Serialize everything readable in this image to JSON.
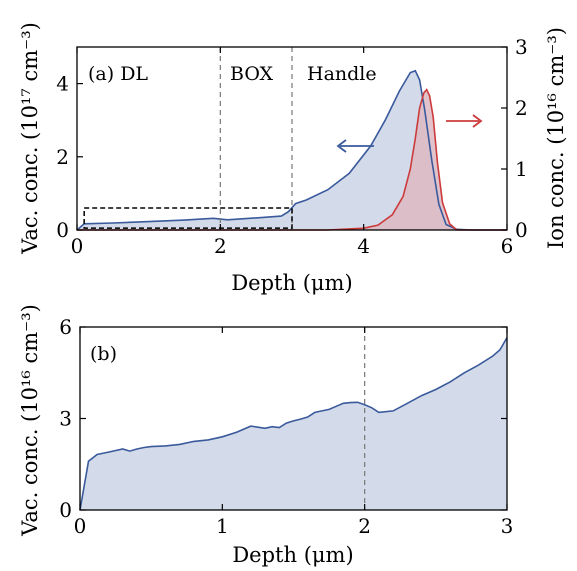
{
  "chart_data": [
    {
      "panel": "(a)",
      "type": "area",
      "xlabel": "Depth (μm)",
      "ylabel": "Vac. conc. (10¹⁷ cm⁻³)",
      "y2label": "Ion conc. (10¹⁶ cm⁻³)",
      "xlim": [
        0,
        6
      ],
      "ylim": [
        0,
        5
      ],
      "y2lim": [
        0,
        3
      ],
      "xticks": [
        "0",
        "2",
        "4",
        "6"
      ],
      "yticks": [
        "0",
        "2",
        "4"
      ],
      "y2ticks": [
        "0",
        "1",
        "2",
        "3"
      ],
      "region_labels": [
        "(a)  DL",
        "BOX",
        "Handle"
      ],
      "region_boundaries": [
        2,
        3
      ],
      "zoom_box": {
        "x": [
          0.1,
          3.0
        ],
        "y": [
          0.05,
          0.6
        ]
      },
      "grid": false,
      "series": [
        {
          "axis": "left",
          "color": "#3a5a9c",
          "fill": "#d3dae9",
          "arrow": "left",
          "x": [
            0,
            0.1,
            0.5,
            1.0,
            1.5,
            1.9,
            2.1,
            2.5,
            2.85,
            2.95,
            3.05,
            3.2,
            3.5,
            3.8,
            4.1,
            4.3,
            4.5,
            4.65,
            4.72,
            4.78,
            4.85,
            4.95,
            5.05,
            5.15,
            5.3,
            5.5,
            6.0
          ],
          "y": [
            0,
            0.17,
            0.19,
            0.23,
            0.27,
            0.32,
            0.28,
            0.33,
            0.38,
            0.5,
            0.72,
            0.82,
            1.1,
            1.55,
            2.3,
            3.0,
            3.8,
            4.3,
            4.35,
            4.1,
            3.3,
            1.9,
            0.7,
            0.15,
            0.02,
            0.0,
            0.0
          ]
        },
        {
          "axis": "right",
          "color": "#cc3b3b",
          "fill": "#dcb8c2",
          "arrow": "right",
          "x": [
            0,
            3.5,
            4.0,
            4.2,
            4.4,
            4.55,
            4.65,
            4.72,
            4.78,
            4.84,
            4.88,
            4.92,
            4.97,
            5.03,
            5.1,
            5.2,
            5.3,
            6.0
          ],
          "y": [
            0,
            0,
            0.03,
            0.08,
            0.25,
            0.55,
            1.0,
            1.5,
            2.0,
            2.25,
            2.3,
            2.2,
            1.85,
            1.1,
            0.45,
            0.1,
            0.0,
            0.0
          ]
        }
      ]
    },
    {
      "panel": "(b)",
      "type": "area",
      "xlabel": "Depth (μm)",
      "ylabel": "Vac. conc. (10¹⁶ cm⁻³)",
      "xlim": [
        0,
        3
      ],
      "ylim": [
        0,
        6
      ],
      "xticks": [
        "0",
        "1",
        "2",
        "3"
      ],
      "yticks": [
        "0",
        "3",
        "6"
      ],
      "region_boundaries": [
        2
      ],
      "grid": false,
      "series": [
        {
          "color": "#3a5a9c",
          "fill": "#d3dae9",
          "x": [
            0,
            0.06,
            0.12,
            0.2,
            0.3,
            0.35,
            0.4,
            0.45,
            0.5,
            0.6,
            0.7,
            0.8,
            0.9,
            1.0,
            1.1,
            1.2,
            1.3,
            1.35,
            1.4,
            1.45,
            1.5,
            1.55,
            1.6,
            1.65,
            1.7,
            1.75,
            1.8,
            1.85,
            1.9,
            1.95,
            2.0,
            2.05,
            2.1,
            2.2,
            2.3,
            2.4,
            2.5,
            2.6,
            2.7,
            2.8,
            2.9,
            2.95,
            3.0
          ],
          "y": [
            0,
            1.6,
            1.82,
            1.9,
            2.0,
            1.93,
            2.0,
            2.05,
            2.08,
            2.1,
            2.15,
            2.25,
            2.3,
            2.4,
            2.55,
            2.75,
            2.68,
            2.73,
            2.7,
            2.85,
            2.92,
            2.98,
            3.05,
            3.2,
            3.25,
            3.3,
            3.4,
            3.5,
            3.52,
            3.53,
            3.45,
            3.35,
            3.2,
            3.25,
            3.5,
            3.75,
            3.95,
            4.2,
            4.5,
            4.75,
            5.05,
            5.25,
            5.65
          ]
        }
      ]
    }
  ]
}
